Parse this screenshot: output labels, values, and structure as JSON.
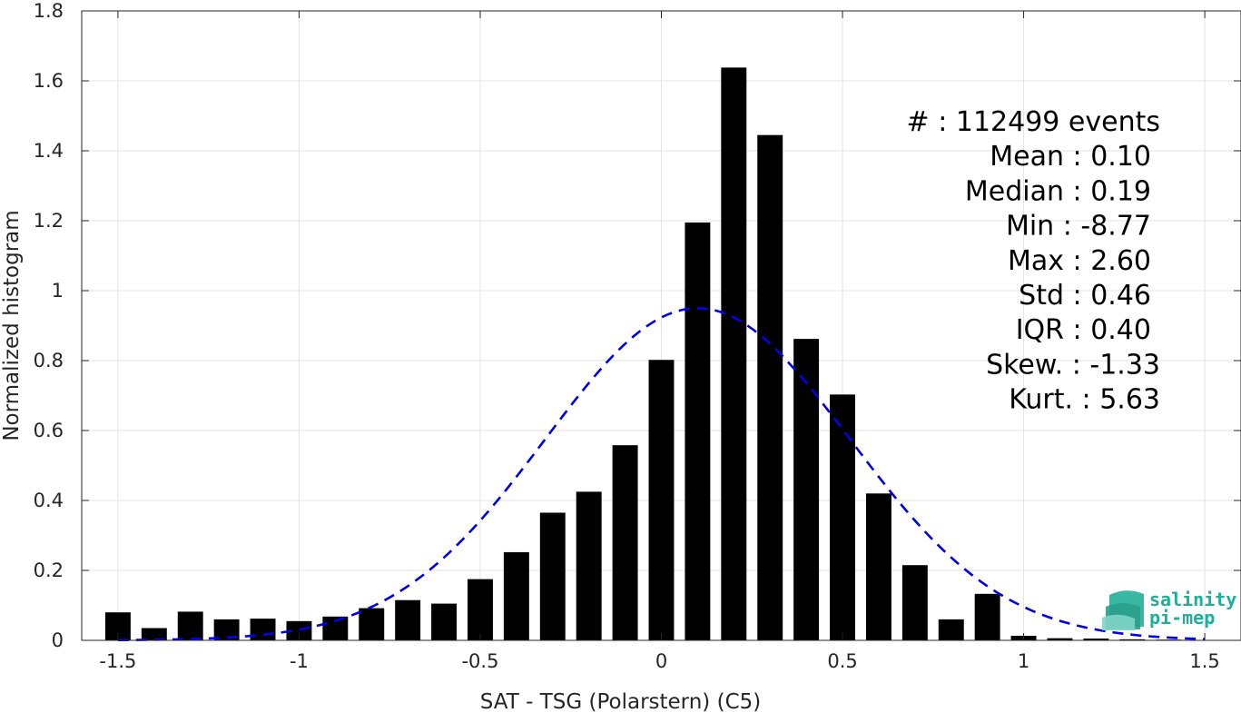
{
  "chart_data": {
    "type": "bar",
    "xlabel": "SAT - TSG (Polarstern) (C5)",
    "ylabel": "Normalized histogram",
    "xlim": [
      -1.6,
      1.6
    ],
    "ylim": [
      0,
      1.8
    ],
    "xticks": [
      -1.5,
      -1,
      -0.5,
      0,
      0.5,
      1,
      1.5
    ],
    "xtick_labels": [
      "-1.5",
      "-1",
      "-0.5",
      "0",
      "0.5",
      "1",
      "1.5"
    ],
    "yticks": [
      0,
      0.2,
      0.4,
      0.6,
      0.8,
      1,
      1.2,
      1.4,
      1.6,
      1.8
    ],
    "ytick_labels": [
      "0",
      "0.2",
      "0.4",
      "0.6",
      "0.8",
      "1",
      "1.2",
      "1.4",
      "1.6",
      "1.8"
    ],
    "grid": true,
    "bar_color": "#000000",
    "bar_width": 0.07,
    "bins": [
      -1.5,
      -1.4,
      -1.3,
      -1.2,
      -1.1,
      -1.0,
      -0.9,
      -0.8,
      -0.7,
      -0.6,
      -0.5,
      -0.4,
      -0.3,
      -0.2,
      -0.1,
      0.0,
      0.1,
      0.2,
      0.3,
      0.4,
      0.5,
      0.6,
      0.7,
      0.8,
      0.9,
      1.0,
      1.1,
      1.2,
      1.3,
      1.4,
      1.5
    ],
    "values": [
      0.08,
      0.035,
      0.082,
      0.06,
      0.062,
      0.055,
      0.068,
      0.092,
      0.115,
      0.105,
      0.175,
      0.252,
      0.365,
      0.425,
      0.558,
      0.802,
      1.195,
      1.638,
      1.445,
      0.862,
      0.703,
      0.42,
      0.215,
      0.06,
      0.133,
      0.013,
      0.006,
      0.005,
      0.003,
      0.002,
      0.001
    ],
    "fit_curve": {
      "type": "gaussian",
      "mean": 0.1,
      "std": 0.42,
      "color": "#0000e6",
      "style": "dashed",
      "x_range": [
        -1.5,
        1.5
      ]
    },
    "stats": [
      {
        "label": "#  : 112499 events"
      },
      {
        "label": "Mean : 0.10"
      },
      {
        "label": "Median : 0.19"
      },
      {
        "label": "Min : -8.77"
      },
      {
        "label": "Max : 2.60"
      },
      {
        "label": "Std : 0.46"
      },
      {
        "label": "IQR : 0.40"
      },
      {
        "label": "Skew. : -1.33"
      },
      {
        "label": "Kurt. : 5.63"
      }
    ]
  },
  "logo": {
    "line1": "salinity",
    "line2": "pi-mep",
    "color": "#1fae9a"
  }
}
